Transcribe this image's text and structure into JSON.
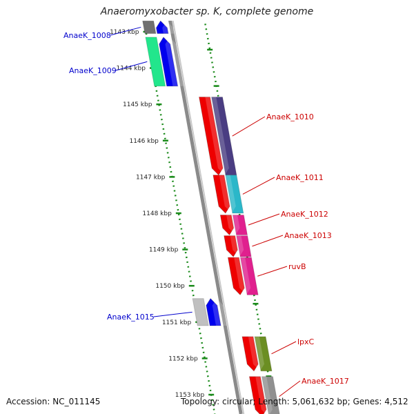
{
  "title": "Anaeromyxobacter sp. K, complete genome",
  "footer": {
    "accession": "Accession: NC_011145",
    "summary": "Topology: circular; Length: 5,061,632 bp; Genes: 4,512"
  },
  "axis": {
    "tick_labels": [
      "1143 kbp",
      "1144 kbp",
      "1145 kbp",
      "1146 kbp",
      "1147 kbp",
      "1148 kbp",
      "1149 kbp",
      "1150 kbp",
      "1151 kbp",
      "1152 kbp",
      "1153 kbp"
    ]
  },
  "genes": [
    {
      "label": "AnaeK_1008",
      "strand": "reverse",
      "start_kbp": 1142.7,
      "end_kbp": 1143.05,
      "cds_color": "#0000ee",
      "cog_color": "#707070",
      "label_color": "#0000cc"
    },
    {
      "label": "AnaeK_1009",
      "strand": "reverse",
      "start_kbp": 1143.15,
      "end_kbp": 1144.5,
      "cds_color": "#0000ee",
      "cog_color": "#22e68c",
      "label_color": "#0000cc"
    },
    {
      "label": "AnaeK_1010",
      "strand": "forward",
      "start_kbp": 1144.8,
      "end_kbp": 1146.95,
      "cds_color": "#ee0000",
      "cog_color": "#4a3d82",
      "label_color": "#cc0000"
    },
    {
      "label": "AnaeK_1011",
      "strand": "forward",
      "start_kbp": 1146.95,
      "end_kbp": 1148.0,
      "cds_color": "#ee0000",
      "cog_color": "#2bb7c9",
      "label_color": "#cc0000"
    },
    {
      "label": "AnaeK_1012",
      "strand": "forward",
      "start_kbp": 1148.05,
      "end_kbp": 1148.6,
      "cds_color": "#ee0000",
      "cog_color": "#e0208e",
      "label_color": "#cc0000"
    },
    {
      "label": "AnaeK_1013",
      "strand": "forward",
      "start_kbp": 1148.62,
      "end_kbp": 1149.2,
      "cds_color": "#ee0000",
      "cog_color": "#e0208e",
      "label_color": "#cc0000"
    },
    {
      "label": "ruvB",
      "strand": "forward",
      "start_kbp": 1149.22,
      "end_kbp": 1150.25,
      "cds_color": "#ee0000",
      "cog_color": "#e0208e",
      "label_color": "#cc0000"
    },
    {
      "label": "AnaeK_1015",
      "strand": "reverse",
      "start_kbp": 1150.35,
      "end_kbp": 1151.1,
      "cds_color": "#0000ee",
      "cog_color": "#c0c0c0",
      "label_color": "#0000cc"
    },
    {
      "label": "lpxC",
      "strand": "forward",
      "start_kbp": 1151.4,
      "end_kbp": 1152.35,
      "cds_color": "#ee0000",
      "cog_color": "#6b8e23",
      "label_color": "#cc0000"
    },
    {
      "label": "AnaeK_1017",
      "strand": "forward",
      "start_kbp": 1152.5,
      "end_kbp": 1153.6,
      "cds_color": "#ee0000",
      "cog_color": "#909090",
      "label_color": "#cc0000"
    }
  ]
}
